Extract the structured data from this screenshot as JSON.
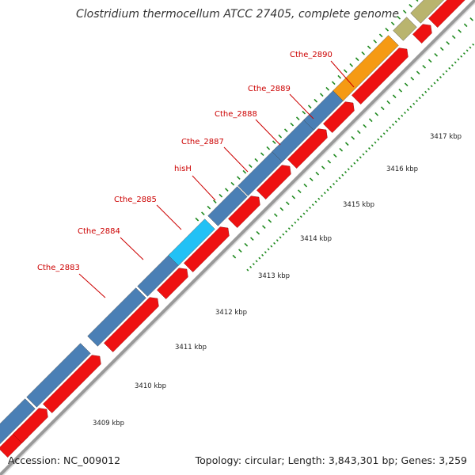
{
  "title": "Clostridium thermocellum ATCC 27405, complete genome",
  "footer": {
    "accession": "Accession: NC_009012",
    "summary": "Topology: circular; Length: 3,843,301 bp; Genes: 3,259"
  },
  "colors": {
    "forward_cds": "#4a7fb5",
    "reverse_cds": "#ee1111",
    "highlight_cds": "#22c1f5",
    "orange_cds": "#f59a14",
    "olive_cds": "#b9b46e",
    "backbone": "#9a9a9a",
    "tick": "#1f8a1f",
    "label": "#cc0000"
  },
  "kbp_labels": [
    "3409 kbp",
    "3410 kbp",
    "3411 kbp",
    "3412 kbp",
    "3413 kbp",
    "3414 kbp",
    "3415 kbp",
    "3416 kbp",
    "3417 kbp"
  ],
  "gene_labels": [
    "Cthe_2883",
    "Cthe_2884",
    "Cthe_2885",
    "hisH",
    "Cthe_2887",
    "Cthe_2888",
    "Cthe_2889",
    "Cthe_2890"
  ]
}
